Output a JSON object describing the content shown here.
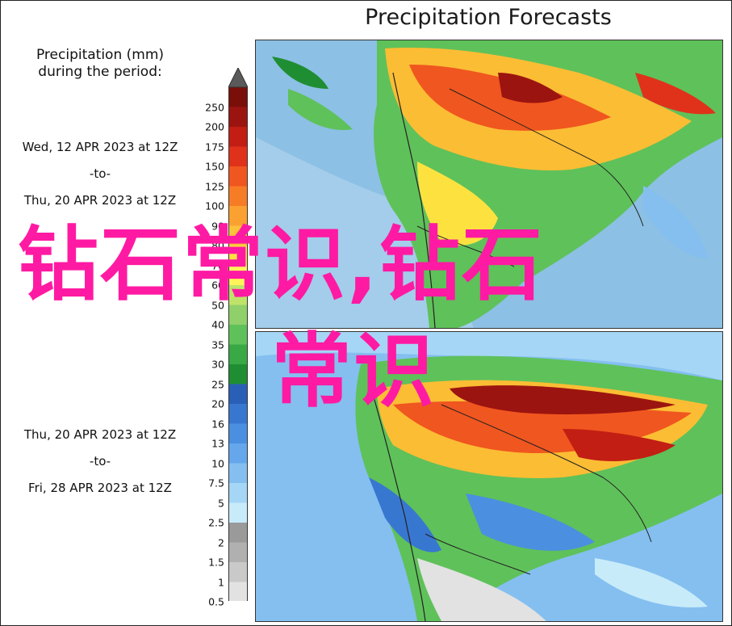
{
  "header": {
    "title": "Precipitation Forecasts"
  },
  "legend": {
    "title_line1": "Precipitation (mm)",
    "title_line2": "during the period:",
    "ticks": [
      "250",
      "200",
      "175",
      "150",
      "125",
      "100",
      "90",
      "80",
      "70",
      "60",
      "50",
      "40",
      "35",
      "30",
      "25",
      "20",
      "16",
      "13",
      "10",
      "7.5",
      "5",
      "2.5",
      "2",
      "1.5",
      "1",
      "0.5"
    ],
    "colors": [
      "#7a0f0a",
      "#9c1410",
      "#c21e14",
      "#e0321a",
      "#f0561f",
      "#f77c26",
      "#fba131",
      "#fcc23a",
      "#fde23f",
      "#fff35a",
      "#bfe36a",
      "#8fd06a",
      "#5fc15a",
      "#38a944",
      "#1f8e33",
      "#2a5fb8",
      "#3877d0",
      "#4b8fe0",
      "#65a7ea",
      "#84bff0",
      "#a6d6f6",
      "#c8ebfa",
      "#9a9a9a",
      "#b0b0b0",
      "#c9c9c9",
      "#e2e2e2"
    ],
    "top_arrow_color": "#5a5a5a",
    "bottom_arrow_color": "#ffffff"
  },
  "periods": [
    {
      "start": "Wed, 12 APR 2023 at 12Z",
      "sep": "-to-",
      "end": "Thu, 20 APR 2023 at 12Z"
    },
    {
      "start": "Thu, 20 APR 2023 at 12Z",
      "sep": "-to-",
      "end": "Fri, 28 APR 2023 at 12Z"
    }
  ],
  "watermark": {
    "line1": "钻石常识,钻石",
    "line2": "常识",
    "color": "#ff1aa3"
  }
}
